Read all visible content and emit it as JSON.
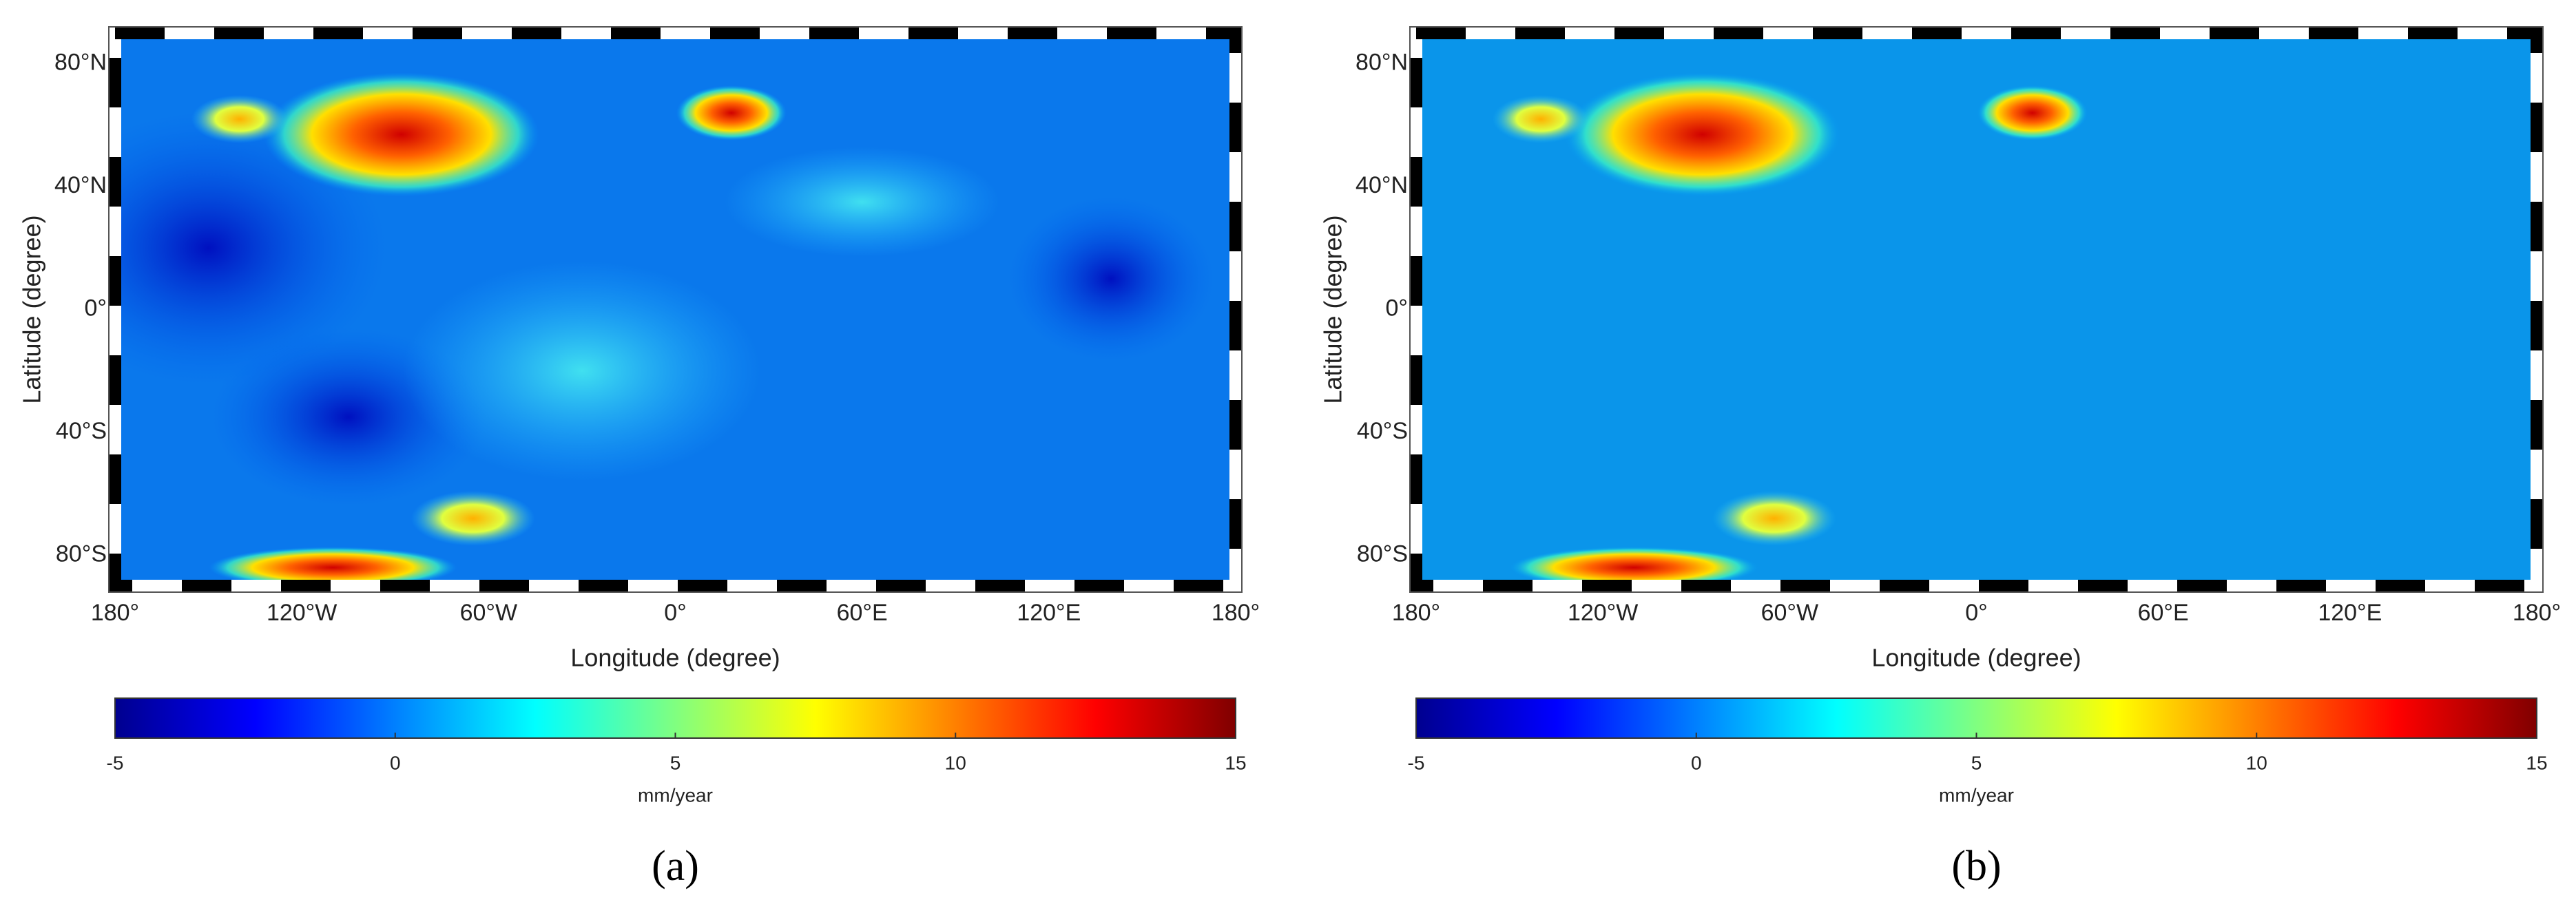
{
  "panels": [
    {
      "label": "(a)",
      "x_axis": {
        "label": "Longitude (degree)",
        "range": [
          -180,
          180
        ],
        "ticks": [
          {
            "value": -180,
            "label": "180°"
          },
          {
            "value": -120,
            "label": "120°W"
          },
          {
            "value": -60,
            "label": "60°W"
          },
          {
            "value": 0,
            "label": "0°"
          },
          {
            "value": 60,
            "label": "60°E"
          },
          {
            "value": 120,
            "label": "120°E"
          },
          {
            "value": 180,
            "label": "180°"
          }
        ]
      },
      "y_axis": {
        "label": "Latitude (degree)",
        "range": [
          -90,
          90
        ],
        "ticks": [
          {
            "value": 80,
            "label": "80°N"
          },
          {
            "value": 40,
            "label": "40°N"
          },
          {
            "value": 0,
            "label": "0°"
          },
          {
            "value": -40,
            "label": "40°S"
          },
          {
            "value": -80,
            "label": "80°S"
          }
        ]
      },
      "colorbar": {
        "label": "mm/year",
        "range": [
          -5,
          15
        ],
        "ticks": [
          -5,
          0,
          5,
          10,
          15
        ]
      }
    },
    {
      "label": "(b)",
      "x_axis": {
        "label": "Longitude (degree)",
        "range": [
          -180,
          180
        ],
        "ticks": [
          {
            "value": -180,
            "label": "180°"
          },
          {
            "value": -120,
            "label": "120°W"
          },
          {
            "value": -60,
            "label": "60°W"
          },
          {
            "value": 0,
            "label": "0°"
          },
          {
            "value": 60,
            "label": "60°E"
          },
          {
            "value": 120,
            "label": "120°E"
          },
          {
            "value": 180,
            "label": "180°"
          }
        ]
      },
      "y_axis": {
        "label": "Latitude (degree)",
        "range": [
          -90,
          90
        ],
        "ticks": [
          {
            "value": 80,
            "label": "80°N"
          },
          {
            "value": 40,
            "label": "40°N"
          },
          {
            "value": 0,
            "label": "0°"
          },
          {
            "value": -40,
            "label": "40°S"
          },
          {
            "value": -80,
            "label": "80°S"
          }
        ]
      },
      "colorbar": {
        "label": "mm/year",
        "range": [
          -5,
          15
        ],
        "ticks": [
          -5,
          0,
          5,
          10,
          15
        ]
      }
    }
  ]
}
